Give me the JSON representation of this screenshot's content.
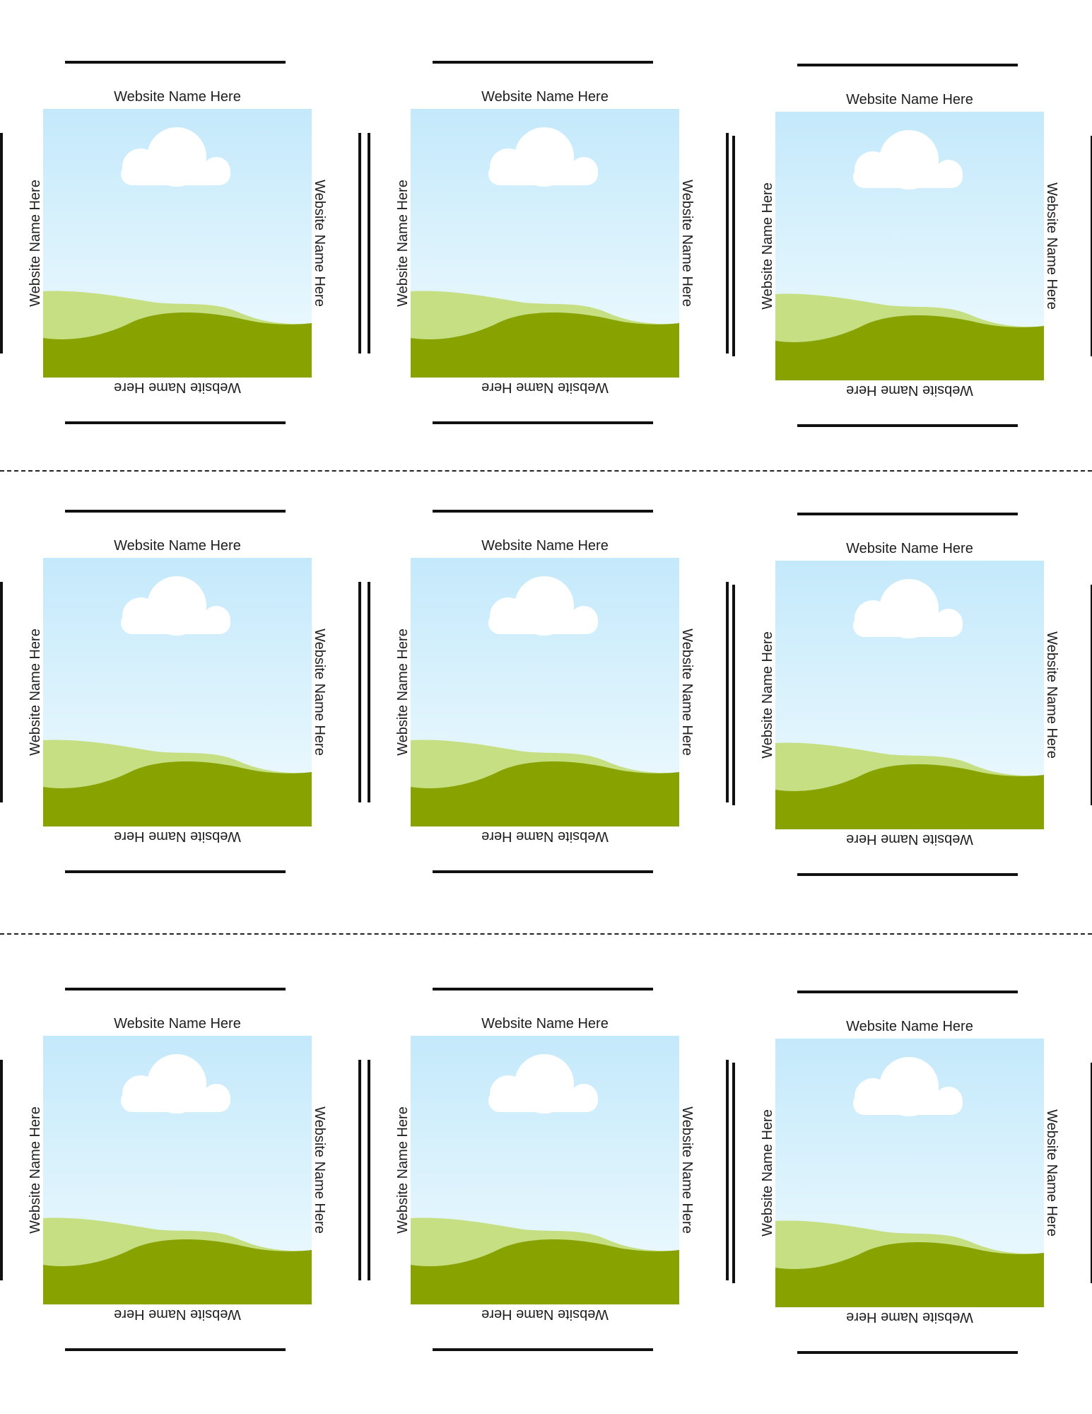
{
  "sheet": {
    "label_text": "Website Name Here",
    "colors": {
      "sky_top": "#c4e9fb",
      "sky_bottom": "#f1fbfe",
      "hill_back": "#c6df83",
      "hill_front": "#88a300",
      "cloud": "#ffffff",
      "rule": "#111111"
    },
    "cards": [
      {
        "top": "Website Name Here",
        "left": "Website Name Here",
        "right": "Website Name Here",
        "bottom": "Website Name Here"
      },
      {
        "top": "Website Name Here",
        "left": "Website Name Here",
        "right": "Website Name Here",
        "bottom": "Website Name Here"
      },
      {
        "top": "Website Name Here",
        "left": "Website Name Here",
        "right": "Website Name Here",
        "bottom": "Website Name Here"
      },
      {
        "top": "Website Name Here",
        "left": "Website Name Here",
        "right": "Website Name Here",
        "bottom": "Website Name Here"
      },
      {
        "top": "Website Name Here",
        "left": "Website Name Here",
        "right": "Website Name Here",
        "bottom": "Website Name Here"
      },
      {
        "top": "Website Name Here",
        "left": "Website Name Here",
        "right": "Website Name Here",
        "bottom": "Website Name Here"
      },
      {
        "top": "Website Name Here",
        "left": "Website Name Here",
        "right": "Website Name Here",
        "bottom": "Website Name Here"
      },
      {
        "top": "Website Name Here",
        "left": "Website Name Here",
        "right": "Website Name Here",
        "bottom": "Website Name Here"
      },
      {
        "top": "Website Name Here",
        "left": "Website Name Here",
        "right": "Website Name Here",
        "bottom": "Website Name Here"
      }
    ]
  }
}
